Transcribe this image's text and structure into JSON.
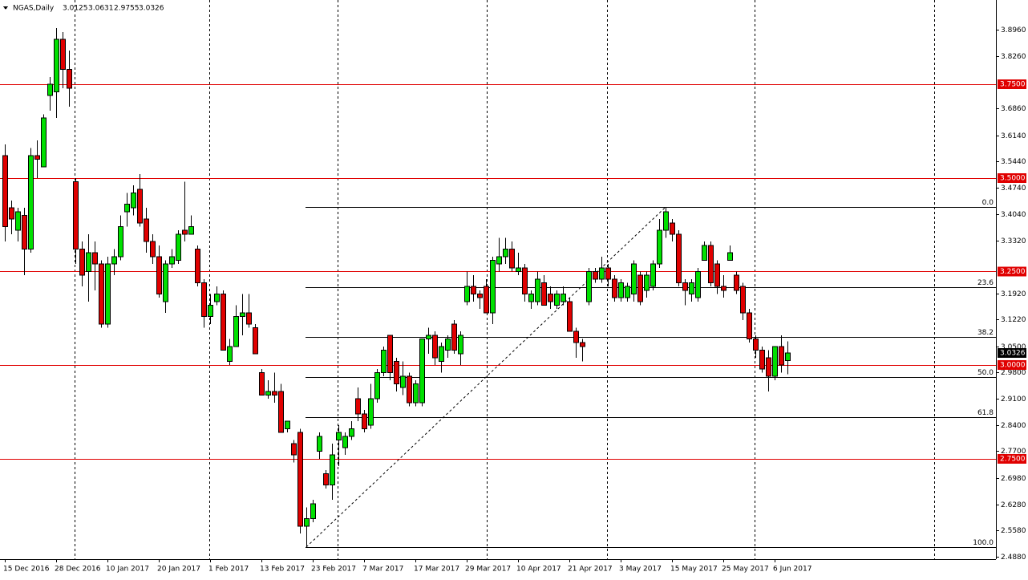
{
  "chart_data": {
    "type": "candlestick",
    "title": "NGAS,Daily",
    "categories": [
      "15 Dec 2016",
      null,
      null,
      null,
      null,
      null,
      null,
      null,
      "28 Dec 2016",
      null,
      null,
      null,
      null,
      null,
      null,
      null,
      "10 Jan 2017",
      null,
      null,
      null,
      null,
      null,
      null,
      null,
      "20 Jan 2017",
      null,
      null,
      null,
      null,
      null,
      null,
      null,
      "1 Feb 2017",
      null,
      null,
      null,
      null,
      null,
      null,
      null,
      "13 Feb 2017",
      null,
      null,
      null,
      null,
      null,
      null,
      null,
      "23 Feb 2017",
      null,
      null,
      null,
      null,
      null,
      null,
      null,
      "7 Mar 2017",
      null,
      null,
      null,
      null,
      null,
      null,
      null,
      "17 Mar 2017",
      null,
      null,
      null,
      null,
      null,
      null,
      null,
      "29 Mar 2017",
      null,
      null,
      null,
      null,
      null,
      null,
      null,
      "10 Apr 2017",
      null,
      null,
      null,
      null,
      null,
      null,
      null,
      "21 Apr 2017",
      null,
      null,
      null,
      null,
      null,
      null,
      null,
      "3 May 2017",
      null,
      null,
      null,
      null,
      null,
      null,
      null,
      "15 May 2017",
      null,
      null,
      null,
      null,
      null,
      null,
      null,
      "25 May 2017",
      null,
      null,
      null,
      null,
      null,
      null,
      null,
      "6 Jun 2017",
      null,
      null
    ],
    "open": [
      3.56,
      3.42,
      3.36,
      3.4,
      3.31,
      3.56,
      3.53,
      3.72,
      3.73,
      3.87,
      3.79,
      3.49,
      3.31,
      3.25,
      3.3,
      3.27,
      3.11,
      3.27,
      3.29,
      3.41,
      3.42,
      3.47,
      3.39,
      3.33,
      3.29,
      3.17,
      3.27,
      3.28,
      3.36,
      3.35,
      3.31,
      3.22,
      3.13,
      3.17,
      3.19,
      3.01,
      3.05,
      3.13,
      3.14,
      3.1,
      2.98,
      2.92,
      2.93,
      2.93,
      2.83,
      2.79,
      2.82,
      2.57,
      2.59,
      2.77,
      2.71,
      2.68,
      2.8,
      2.78,
      2.81,
      2.91,
      2.87,
      2.84,
      2.91,
      2.98,
      3.08,
      3.01,
      2.94,
      2.97,
      2.9,
      2.9,
      3.07,
      3.08,
      3.01,
      3.04,
      3.11,
      3.03,
      3.17,
      3.21,
      3.19,
      3.21,
      3.14,
      3.27,
      3.29,
      3.31,
      3.25,
      3.26,
      3.17,
      3.17,
      3.22,
      3.19,
      3.16,
      3.17,
      3.17,
      3.09,
      3.06,
      3.17,
      3.25,
      3.23,
      3.26,
      3.23,
      3.18,
      3.18,
      3.19,
      3.24,
      3.2,
      3.21,
      3.27,
      3.36,
      3.38,
      3.35,
      3.22,
      3.19,
      3.18,
      3.28,
      3.32,
      3.27,
      3.21,
      3.28,
      3.24,
      3.21,
      3.14,
      3.07,
      3.04,
      3.02,
      2.97,
      3.05,
      3.0125
    ],
    "high": [
      3.59,
      3.44,
      3.42,
      3.42,
      3.58,
      3.6,
      3.67,
      3.77,
      3.9,
      3.89,
      3.84,
      3.5,
      3.33,
      3.35,
      3.33,
      3.28,
      3.29,
      3.31,
      3.4,
      3.46,
      3.48,
      3.51,
      3.42,
      3.35,
      3.32,
      3.28,
      3.31,
      3.36,
      3.49,
      3.4,
      3.32,
      3.23,
      3.19,
      3.21,
      3.2,
      3.07,
      3.16,
      3.19,
      3.19,
      3.11,
      2.99,
      2.96,
      2.98,
      2.95,
      2.85,
      2.8,
      2.83,
      2.62,
      2.64,
      2.82,
      2.72,
      2.79,
      2.84,
      2.82,
      2.85,
      2.94,
      2.88,
      2.95,
      2.99,
      3.05,
      3.08,
      3.02,
      3.01,
      2.98,
      2.96,
      3.07,
      3.1,
      3.09,
      3.06,
      3.08,
      3.12,
      3.09,
      3.25,
      3.24,
      3.2,
      3.23,
      3.29,
      3.34,
      3.34,
      3.33,
      3.3,
      3.27,
      3.2,
      3.25,
      3.24,
      3.21,
      3.2,
      3.21,
      3.18,
      3.1,
      3.07,
      3.26,
      3.26,
      3.29,
      3.27,
      3.24,
      3.23,
      3.22,
      3.28,
      3.25,
      3.25,
      3.28,
      3.39,
      3.422,
      3.39,
      3.36,
      3.23,
      3.23,
      3.26,
      3.33,
      3.33,
      3.28,
      3.24,
      3.32,
      3.25,
      3.22,
      3.15,
      3.08,
      3.05,
      3.04,
      3.05,
      3.08,
      3.0631
    ],
    "low": [
      3.33,
      3.35,
      3.33,
      3.24,
      3.3,
      3.5,
      3.53,
      3.68,
      3.66,
      3.74,
      3.69,
      3.27,
      3.21,
      3.17,
      3.2,
      3.1,
      3.1,
      3.24,
      3.28,
      3.37,
      3.4,
      3.37,
      3.3,
      3.27,
      3.18,
      3.14,
      3.26,
      3.27,
      3.33,
      3.35,
      3.21,
      3.1,
      3.11,
      3.16,
      3.04,
      3.0,
      3.05,
      3.08,
      3.1,
      3.03,
      2.92,
      2.91,
      2.9,
      2.82,
      2.82,
      2.74,
      2.55,
      2.514,
      2.58,
      2.75,
      2.67,
      2.64,
      2.73,
      2.76,
      2.8,
      2.85,
      2.82,
      2.83,
      2.9,
      2.97,
      2.96,
      2.93,
      2.92,
      2.89,
      2.89,
      2.89,
      3.03,
      3.0,
      2.98,
      3.02,
      3.03,
      3.0,
      3.16,
      3.17,
      3.15,
      3.14,
      3.11,
      3.25,
      3.27,
      3.25,
      3.24,
      3.17,
      3.15,
      3.16,
      3.16,
      3.15,
      3.15,
      3.16,
      3.09,
      3.02,
      3.01,
      3.16,
      3.22,
      3.22,
      3.21,
      3.17,
      3.17,
      3.17,
      3.17,
      3.16,
      3.18,
      3.2,
      3.26,
      3.34,
      3.33,
      3.21,
      3.16,
      3.17,
      3.17,
      3.28,
      3.21,
      3.19,
      3.18,
      3.28,
      3.19,
      3.12,
      3.06,
      3.02,
      2.98,
      2.93,
      2.96,
      2.98,
      2.9755
    ],
    "close": [
      3.37,
      3.39,
      3.41,
      3.31,
      3.56,
      3.55,
      3.66,
      3.75,
      3.87,
      3.79,
      3.74,
      3.31,
      3.24,
      3.3,
      3.27,
      3.11,
      3.27,
      3.29,
      3.37,
      3.43,
      3.46,
      3.38,
      3.33,
      3.29,
      3.19,
      3.27,
      3.29,
      3.35,
      3.35,
      3.37,
      3.22,
      3.13,
      3.16,
      3.19,
      3.04,
      3.05,
      3.13,
      3.14,
      3.11,
      3.03,
      2.92,
      2.93,
      2.92,
      2.82,
      2.85,
      2.76,
      2.57,
      2.59,
      2.63,
      2.81,
      2.68,
      2.76,
      2.82,
      2.81,
      2.83,
      2.87,
      2.83,
      2.91,
      2.98,
      3.04,
      2.98,
      2.95,
      2.97,
      2.9,
      2.95,
      3.07,
      3.08,
      3.02,
      3.05,
      3.07,
      3.04,
      3.08,
      3.21,
      3.19,
      3.18,
      3.14,
      3.28,
      3.29,
      3.31,
      3.26,
      3.26,
      3.19,
      3.19,
      3.23,
      3.16,
      3.17,
      3.19,
      3.19,
      3.09,
      3.06,
      3.05,
      3.25,
      3.23,
      3.26,
      3.23,
      3.18,
      3.22,
      3.21,
      3.27,
      3.17,
      3.24,
      3.27,
      3.36,
      3.41,
      3.35,
      3.22,
      3.2,
      3.22,
      3.25,
      3.32,
      3.22,
      3.21,
      3.2,
      3.3,
      3.2,
      3.14,
      3.07,
      3.04,
      2.99,
      2.97,
      3.05,
      3.0,
      3.0326
    ],
    "up_color": "#00e000",
    "down_color": "#e00000",
    "ylim": [
      2.4816,
      3.9753
    ],
    "yticks": [
      {
        "value": 3.896,
        "label": "3.8960"
      },
      {
        "value": 3.826,
        "label": "3.8260"
      },
      {
        "value": 3.686,
        "label": "3.6860"
      },
      {
        "value": 3.614,
        "label": "3.6140"
      },
      {
        "value": 3.544,
        "label": "3.5440"
      },
      {
        "value": 3.474,
        "label": "3.4740"
      },
      {
        "value": 3.404,
        "label": "3.4040"
      },
      {
        "value": 3.332,
        "label": "3.3320"
      },
      {
        "value": 3.192,
        "label": "3.1920"
      },
      {
        "value": 3.122,
        "label": "3.1220"
      },
      {
        "value": 3.05,
        "label": "3.0500"
      },
      {
        "value": 2.98,
        "label": "2.9800"
      },
      {
        "value": 2.91,
        "label": "2.9100"
      },
      {
        "value": 2.84,
        "label": "2.8400"
      },
      {
        "value": 2.77,
        "label": "2.7700"
      },
      {
        "value": 2.698,
        "label": "2.6980"
      },
      {
        "value": 2.628,
        "label": "2.6280"
      },
      {
        "value": 2.558,
        "label": "2.5580"
      },
      {
        "value": 2.488,
        "label": "2.4880"
      }
    ],
    "hlines": [
      {
        "value": 3.75,
        "label": "3.7500"
      },
      {
        "value": 3.5,
        "label": "3.5000"
      },
      {
        "value": 3.25,
        "label": "3.2500"
      },
      {
        "value": 3.0,
        "label": "3.0000"
      },
      {
        "value": 2.75,
        "label": "2.7500"
      }
    ],
    "hline_color": "#e00000",
    "fib_levels": [
      {
        "value": 3.422,
        "label": "0.0"
      },
      {
        "value": 3.2077,
        "label": "23.6"
      },
      {
        "value": 3.0751,
        "label": "38.2"
      },
      {
        "value": 2.968,
        "label": "50.0"
      },
      {
        "value": 2.8609,
        "label": "61.8"
      },
      {
        "value": 2.514,
        "label": "100.0"
      }
    ]
  }
}
